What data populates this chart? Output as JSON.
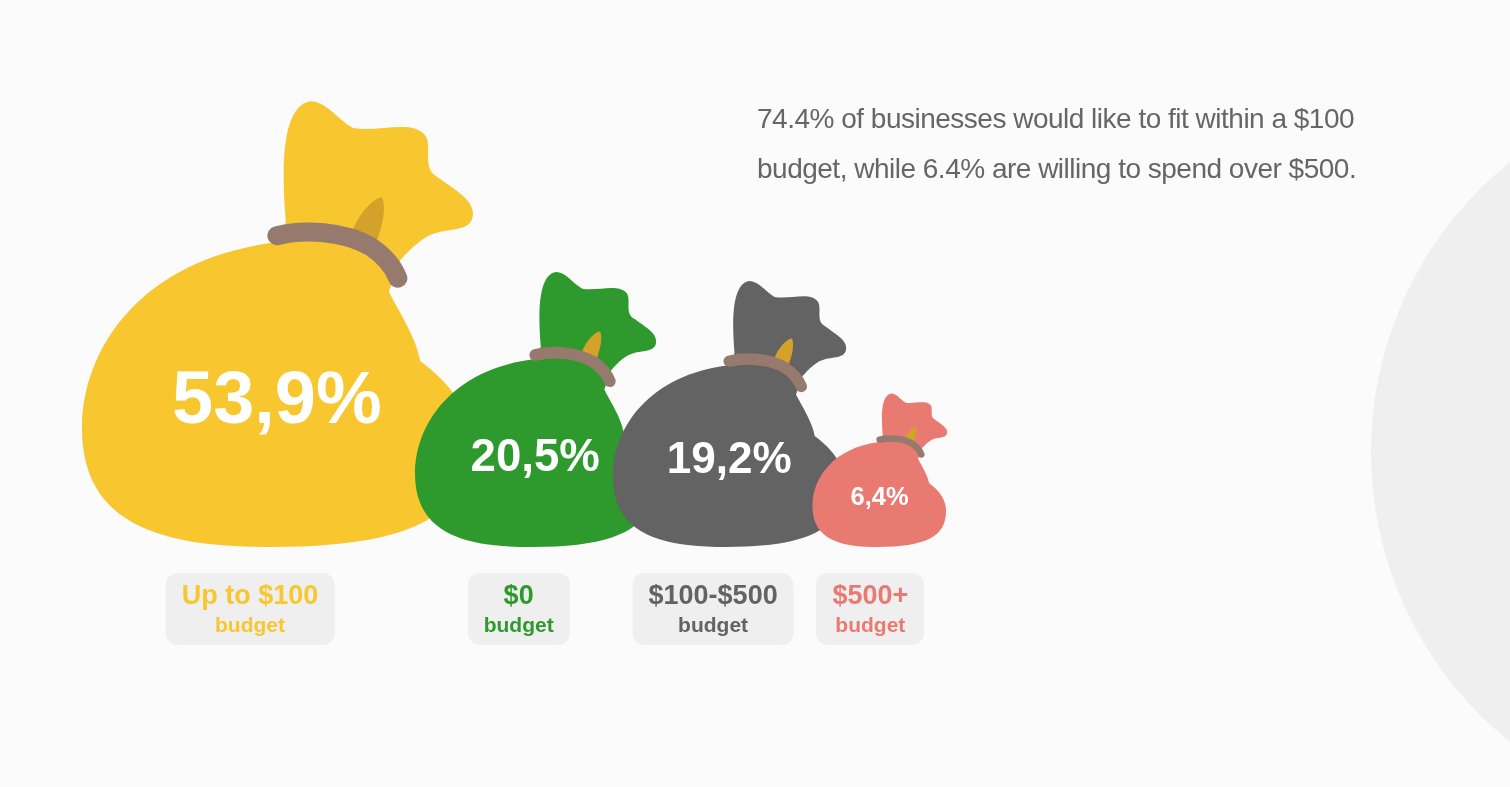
{
  "chart_data": {
    "type": "other",
    "categories": [
      "Up to $100 budget",
      "$0 budget",
      "$100-$500 budget",
      "$500+ budget"
    ],
    "values": [
      53.9,
      20.5,
      19.2,
      6.4
    ],
    "colors": [
      "#f8c62f",
      "#2e9a2e",
      "#636363",
      "#e97a72"
    ],
    "value_labels": [
      "53,9%",
      "20,5%",
      "19,2%",
      "6,4%"
    ],
    "annotations": [
      "74.4% of businesses would like to fit within a $100 budget, while 6.4% are willing to spend over $500."
    ]
  }
}
